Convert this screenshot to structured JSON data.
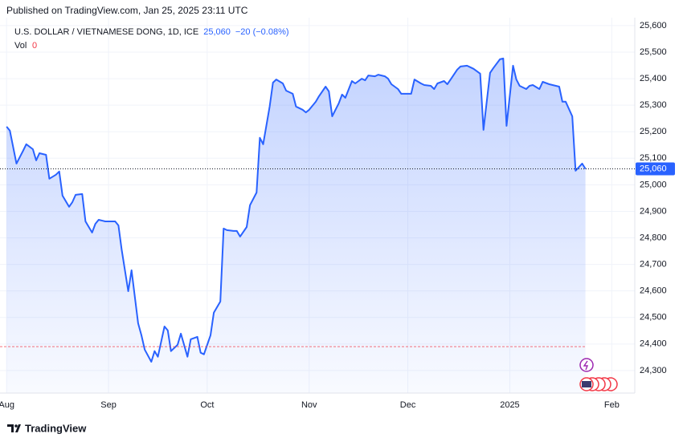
{
  "header": {
    "published": "Published on TradingView.com, Jan 25, 2025 23:11 UTC"
  },
  "footer": {
    "brand": "TradingView"
  },
  "chart_data": {
    "type": "line",
    "legend": {
      "price_label": "25,060",
      "change": "−20 (−0.08%)",
      "volume_label": "Vol",
      "volume": 0
    },
    "x": [
      0,
      1,
      3,
      5,
      6,
      8,
      9,
      10,
      12,
      13,
      15,
      16,
      17,
      19,
      20,
      21,
      23,
      24,
      26,
      27,
      28,
      30,
      31,
      33,
      34,
      35,
      37,
      38,
      40,
      41,
      42,
      44,
      45,
      46,
      48,
      49,
      50,
      52,
      53,
      55,
      56,
      58,
      59,
      60,
      62,
      63,
      65,
      66,
      67,
      69,
      70,
      71,
      73,
      74,
      76,
      77,
      78,
      80,
      81,
      82,
      84,
      85,
      87,
      88,
      90,
      91,
      92,
      94,
      95,
      97,
      98,
      99,
      101,
      102,
      103,
      105,
      106,
      108,
      109,
      110,
      112,
      113,
      115,
      116,
      117,
      119,
      120,
      121,
      123,
      124,
      126,
      127,
      129,
      130,
      131,
      133,
      134,
      135,
      137,
      138,
      140,
      141,
      142,
      144,
      145,
      147,
      148,
      150,
      151,
      152,
      154,
      155,
      156,
      158,
      159,
      160,
      162,
      163,
      165,
      166,
      168,
      169,
      170,
      172,
      173,
      175,
      176
    ],
    "series": [
      {
        "name": "U.S. DOLLAR / VIETNAMESE DONG, 1D, ICE",
        "color": "#2962ff",
        "values": [
          25219,
          25204,
          25080,
          25128,
          25153,
          25134,
          25092,
          25119,
          25113,
          25023,
          25038,
          25050,
          24959,
          24917,
          24935,
          24962,
          24965,
          24862,
          24820,
          24853,
          24868,
          24862,
          24862,
          24862,
          24847,
          24754,
          24599,
          24678,
          24478,
          24433,
          24379,
          24333,
          24373,
          24352,
          24466,
          24451,
          24373,
          24397,
          24439,
          24352,
          24418,
          24427,
          24367,
          24361,
          24433,
          24518,
          24560,
          24835,
          24829,
          24826,
          24826,
          24805,
          24841,
          24923,
          24971,
          25177,
          25153,
          25295,
          25385,
          25397,
          25382,
          25355,
          25343,
          25295,
          25283,
          25273,
          25283,
          25313,
          25334,
          25370,
          25352,
          25258,
          25307,
          25340,
          25328,
          25391,
          25382,
          25400,
          25394,
          25412,
          25409,
          25415,
          25409,
          25400,
          25379,
          25361,
          25343,
          25343,
          25343,
          25397,
          25382,
          25376,
          25373,
          25361,
          25382,
          25391,
          25379,
          25397,
          25434,
          25446,
          25449,
          25443,
          25437,
          25419,
          25207,
          25422,
          25440,
          25473,
          25476,
          25222,
          25449,
          25397,
          25373,
          25361,
          25373,
          25376,
          25361,
          25388,
          25379,
          25376,
          25370,
          25313,
          25313,
          25258,
          25053,
          25080,
          25060
        ]
      }
    ],
    "last_price": {
      "value": 25060,
      "label": "25,060"
    },
    "reference_line": 24390,
    "xlim": [
      -2,
      191
    ],
    "xticks": [
      {
        "value": 0,
        "label": "Aug"
      },
      {
        "value": 31,
        "label": "Sep"
      },
      {
        "value": 61,
        "label": "Oct"
      },
      {
        "value": 92,
        "label": "Nov"
      },
      {
        "value": 122,
        "label": "Dec"
      },
      {
        "value": 153,
        "label": "2025"
      },
      {
        "value": 184,
        "label": "Feb"
      }
    ],
    "ylim": [
      24215,
      25630
    ],
    "yticks": [
      {
        "value": 24300,
        "label": "24,300"
      },
      {
        "value": 24400,
        "label": "24,400"
      },
      {
        "value": 24500,
        "label": "24,500"
      },
      {
        "value": 24600,
        "label": "24,600"
      },
      {
        "value": 24700,
        "label": "24,700"
      },
      {
        "value": 24800,
        "label": "24,800"
      },
      {
        "value": 24900,
        "label": "24,900"
      },
      {
        "value": 25000,
        "label": "25,000"
      },
      {
        "value": 25100,
        "label": "25,100"
      },
      {
        "value": 25200,
        "label": "25,200"
      },
      {
        "value": 25300,
        "label": "25,300"
      },
      {
        "value": 25400,
        "label": "25,400"
      },
      {
        "value": 25500,
        "label": "25,500"
      },
      {
        "value": 25600,
        "label": "25,600"
      }
    ],
    "grid": true
  }
}
